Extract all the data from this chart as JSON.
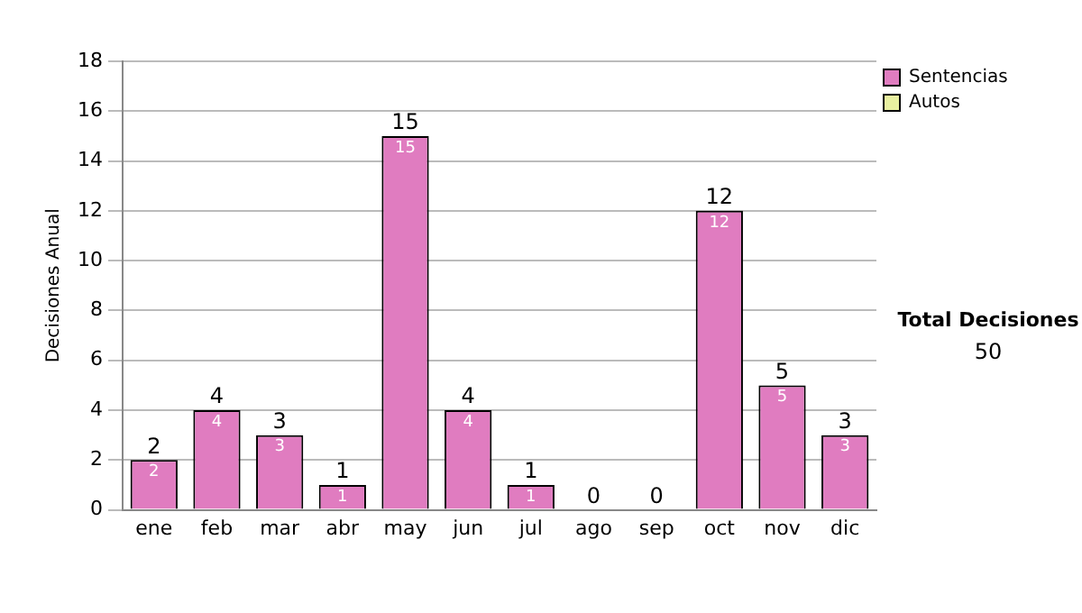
{
  "chart_data": {
    "type": "bar",
    "ylabel": "Decisiones Anual",
    "categories": [
      "ene",
      "feb",
      "mar",
      "abr",
      "may",
      "jun",
      "jul",
      "ago",
      "sep",
      "oct",
      "nov",
      "dic"
    ],
    "series": [
      {
        "name": "Sentencias",
        "color": "#e07cc0",
        "values": [
          2,
          4,
          3,
          1,
          15,
          4,
          1,
          0,
          0,
          12,
          5,
          3
        ],
        "value_labels": [
          "2",
          "4",
          "3",
          "1",
          "15",
          "4",
          "1",
          null,
          null,
          "12",
          "5",
          "3"
        ]
      },
      {
        "name": "Autos",
        "color": "#e8f0a0",
        "values": [
          0,
          0,
          0,
          0,
          0,
          0,
          0,
          0,
          0,
          0,
          0,
          0
        ]
      }
    ],
    "stacked": true,
    "totals": [
      "2",
      "4",
      "3",
      "1",
      "15",
      "4",
      "1",
      "0",
      "0",
      "12",
      "5",
      "3"
    ],
    "ylim": [
      0,
      18
    ],
    "yticks": [
      0,
      2,
      4,
      6,
      8,
      10,
      12,
      14,
      16,
      18
    ],
    "grid": "y",
    "legend": "right",
    "annotations": [
      "Total Decisiones",
      "50"
    ]
  }
}
